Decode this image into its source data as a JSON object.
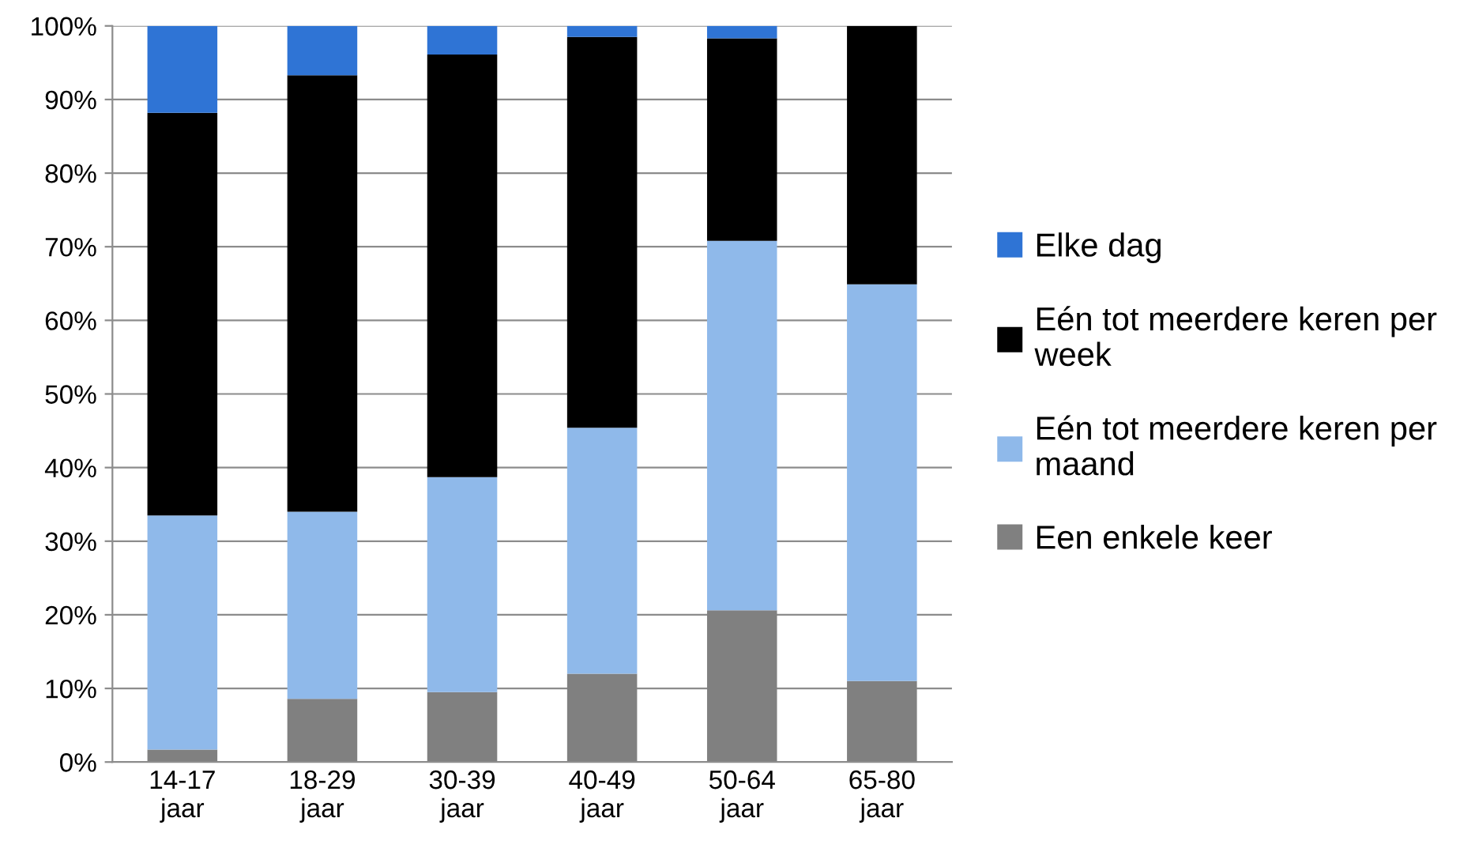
{
  "chart_data": {
    "type": "bar",
    "stacked": true,
    "categories": [
      "14-17 jaar",
      "18-29 jaar",
      "30-39 jaar",
      "40-49 jaar",
      "50-64 jaar",
      "65-80 jaar"
    ],
    "series": [
      {
        "name": "Een enkele keer",
        "color": "#808080",
        "values": [
          1.7,
          8.6,
          9.5,
          12.0,
          20.6,
          11.0
        ]
      },
      {
        "name": "Eén tot meerdere keren per maand",
        "color": "#8fb9ea",
        "values": [
          31.8,
          25.4,
          29.2,
          33.4,
          50.2,
          53.9
        ]
      },
      {
        "name": "Eén tot meerdere keren per week",
        "color": "#000000",
        "values": [
          54.7,
          59.3,
          57.4,
          53.1,
          27.5,
          35.1
        ]
      },
      {
        "name": "Elke dag",
        "color": "#2f74d5",
        "values": [
          11.8,
          6.7,
          3.9,
          1.5,
          1.7,
          0
        ]
      }
    ],
    "ylim": [
      0,
      100
    ],
    "yticks": [
      {
        "value": 0,
        "label": "0%"
      },
      {
        "value": 10,
        "label": "10%"
      },
      {
        "value": 20,
        "label": "20%"
      },
      {
        "value": 30,
        "label": "30%"
      },
      {
        "value": 40,
        "label": "40%"
      },
      {
        "value": 50,
        "label": "50%"
      },
      {
        "value": 60,
        "label": "60%"
      },
      {
        "value": 70,
        "label": "70%"
      },
      {
        "value": 80,
        "label": "80%"
      },
      {
        "value": 90,
        "label": "90%"
      },
      {
        "value": 100,
        "label": "100%"
      }
    ],
    "grid": "y",
    "legend": "right"
  }
}
